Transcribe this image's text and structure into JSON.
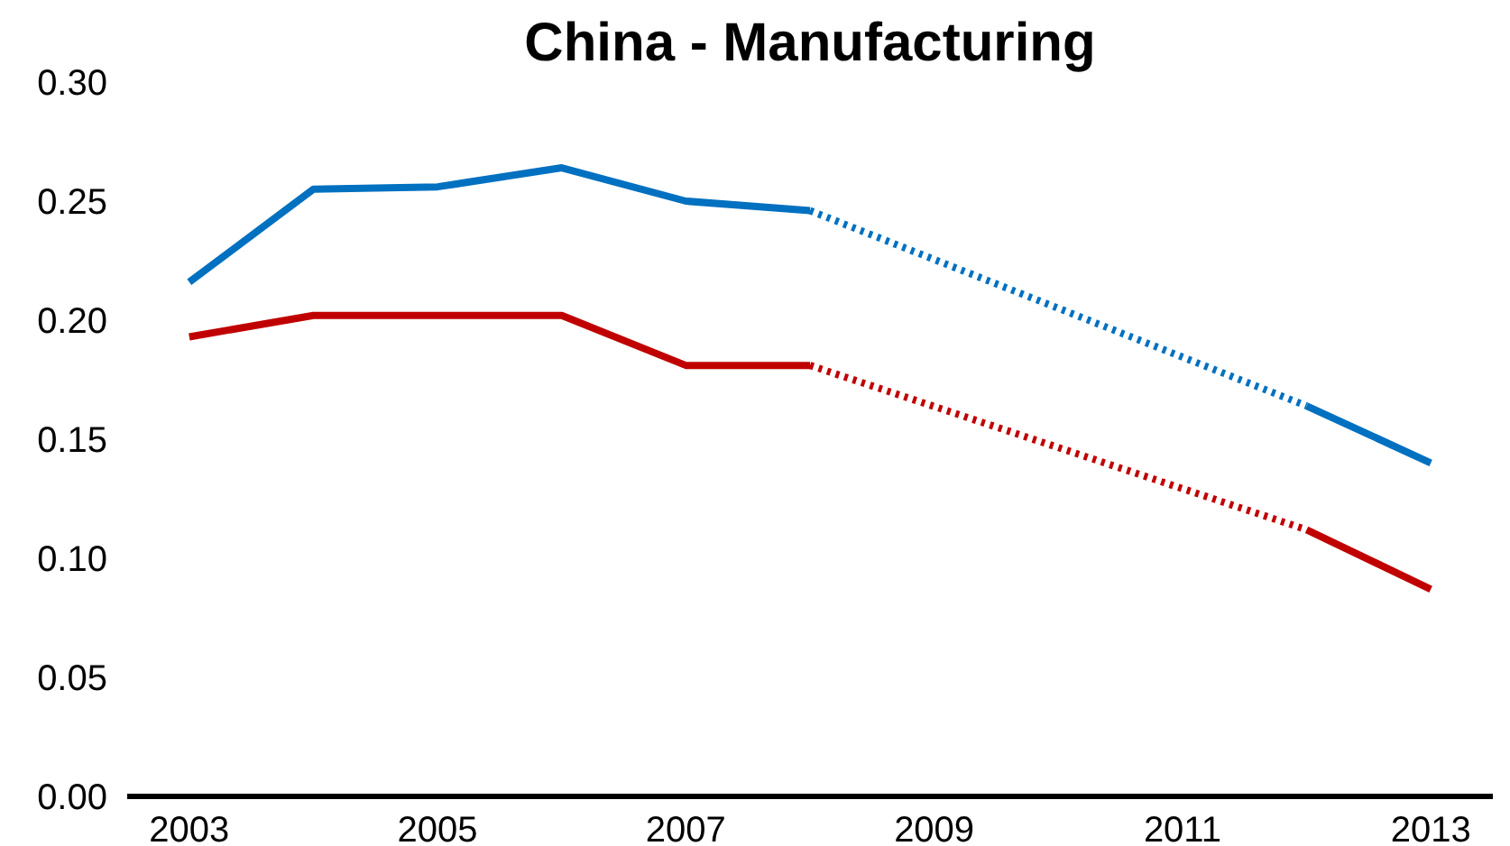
{
  "chart_data": {
    "type": "line",
    "title": "China - Manufacturing",
    "series": [
      {
        "color": "#0070c0",
        "line_style": "solid",
        "x": [
          2003,
          2004,
          2005,
          2006,
          2007,
          2008
        ],
        "values": [
          0.216,
          0.255,
          0.256,
          0.264,
          0.25,
          0.246
        ]
      },
      {
        "color": "#0070c0",
        "line_style": "dotted",
        "x": [
          2008,
          2012
        ],
        "values": [
          0.246,
          0.164
        ]
      },
      {
        "color": "#0070c0",
        "line_style": "solid",
        "x": [
          2012,
          2013
        ],
        "values": [
          0.164,
          0.14
        ]
      },
      {
        "color": "#c00000",
        "line_style": "solid",
        "x": [
          2003,
          2004,
          2005,
          2006,
          2007,
          2008
        ],
        "values": [
          0.193,
          0.202,
          0.202,
          0.202,
          0.181,
          0.181
        ]
      },
      {
        "color": "#c00000",
        "line_style": "dotted",
        "x": [
          2008,
          2012
        ],
        "values": [
          0.181,
          0.112
        ]
      },
      {
        "color": "#c00000",
        "line_style": "solid",
        "x": [
          2012,
          2013
        ],
        "values": [
          0.112,
          0.087
        ]
      }
    ],
    "xlim": [
      2002.5,
      2013.5
    ],
    "xticks": [
      2003,
      2005,
      2007,
      2009,
      2011,
      2013
    ],
    "ylim": [
      0,
      0.3
    ],
    "yticks": [
      {
        "value": 0,
        "label": "0.00"
      },
      {
        "value": 0.05,
        "label": "0.05"
      },
      {
        "value": 0.1,
        "label": "0.10"
      },
      {
        "value": 0.15,
        "label": "0.15"
      },
      {
        "value": 0.2,
        "label": "0.20"
      },
      {
        "value": 0.25,
        "label": "0.25"
      },
      {
        "value": 0.3,
        "label": "0.30"
      }
    ],
    "grid": false,
    "marker": "none"
  }
}
